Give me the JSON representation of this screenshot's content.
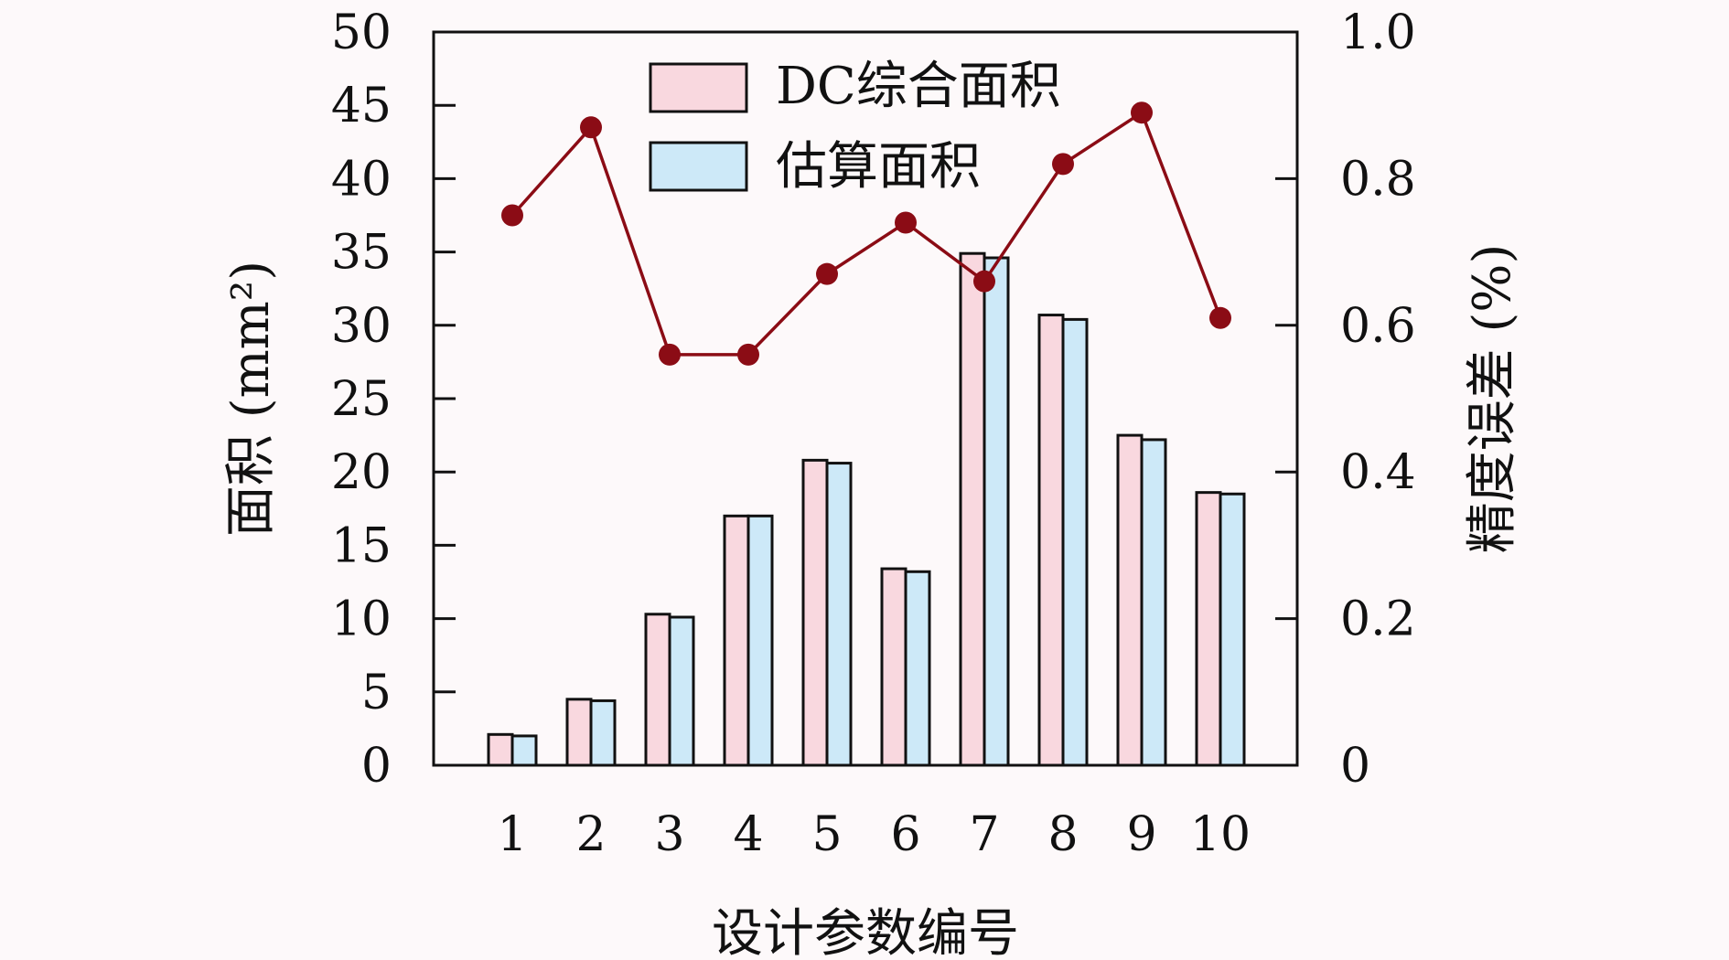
{
  "chart_data": {
    "type": "bar",
    "categories": [
      "1",
      "2",
      "3",
      "4",
      "5",
      "6",
      "7",
      "8",
      "9",
      "10"
    ],
    "series": [
      {
        "name": "DC综合面积",
        "kind": "bar",
        "axis": "left",
        "color": "#f9d8df",
        "values": [
          2.1,
          4.5,
          10.3,
          17.0,
          20.8,
          13.4,
          34.9,
          30.7,
          22.5,
          18.6
        ]
      },
      {
        "name": "估算面积",
        "kind": "bar",
        "axis": "left",
        "color": "#cde9f8",
        "values": [
          2.0,
          4.4,
          10.1,
          17.0,
          20.6,
          13.2,
          34.6,
          30.4,
          22.2,
          18.5
        ]
      },
      {
        "kind": "line",
        "axis": "right",
        "color": "#8b0c15",
        "values": [
          0.75,
          0.87,
          0.56,
          0.56,
          0.67,
          0.74,
          0.66,
          0.82,
          0.89,
          0.61
        ]
      }
    ],
    "xlabel": "设计参数编号",
    "ylabel": "面积 (mm²)",
    "ylabel_right": "精度误差 (%)",
    "ylim": [
      0,
      50
    ],
    "ylim_right": [
      0,
      1.0
    ],
    "yticks": [
      "0",
      "5",
      "10",
      "15",
      "20",
      "25",
      "30",
      "35",
      "40",
      "45",
      "50"
    ],
    "yticks_right": [
      "0",
      "0.2",
      "0.4",
      "0.6",
      "0.8",
      "1.0"
    ],
    "legend": "top-center",
    "grid": false
  }
}
